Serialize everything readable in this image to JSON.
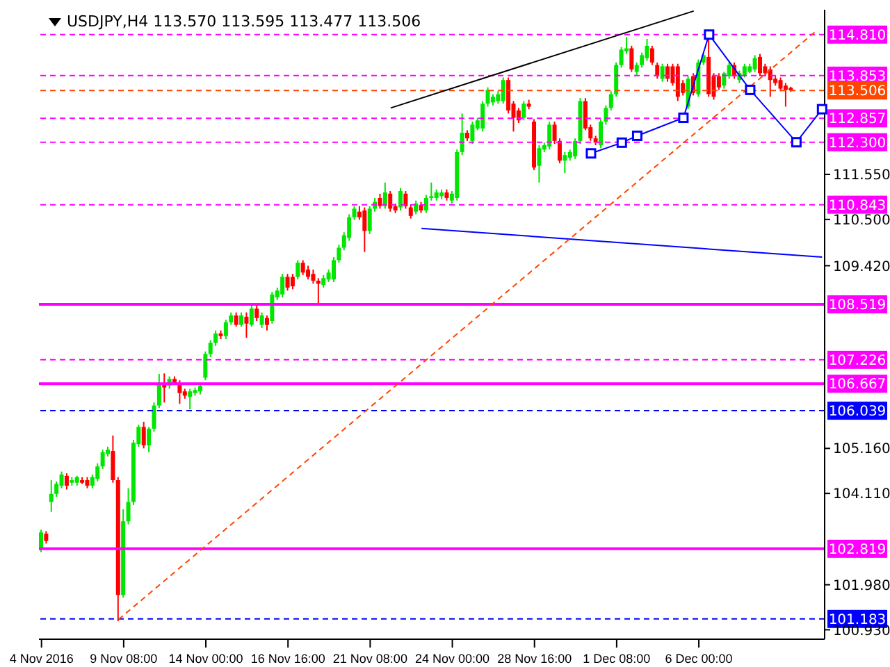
{
  "chart_data": {
    "type": "candlestick",
    "title": "USDJPY,H4 113.570 113.595 113.477 113.506",
    "categories": [
      "4 Nov 2016",
      null,
      null,
      null,
      null,
      null,
      null,
      null,
      null,
      null,
      null,
      null,
      null,
      null,
      null,
      null,
      "9 Nov 08:00",
      null,
      null,
      null,
      null,
      null,
      null,
      null,
      null,
      null,
      null,
      null,
      null,
      null,
      null,
      null,
      "14 Nov 00:00",
      null,
      null,
      null,
      null,
      null,
      null,
      null,
      null,
      null,
      null,
      null,
      null,
      null,
      null,
      null,
      "16 Nov 16:00",
      null,
      null,
      null,
      null,
      null,
      null,
      null,
      null,
      null,
      null,
      null,
      null,
      null,
      null,
      null,
      "21 Nov 08:00",
      null,
      null,
      null,
      null,
      null,
      null,
      null,
      null,
      null,
      null,
      null,
      null,
      null,
      null,
      null,
      "24 Nov 00:00",
      null,
      null,
      null,
      null,
      null,
      null,
      null,
      null,
      null,
      null,
      null,
      null,
      null,
      null,
      null,
      "28 Nov 16:00",
      null,
      null,
      null,
      null,
      null,
      null,
      null,
      null,
      null,
      null,
      null,
      null,
      null,
      null,
      null,
      "1 Dec 08:00",
      null,
      null,
      null,
      null,
      null,
      null,
      null,
      null,
      null,
      null,
      null,
      null,
      null,
      null,
      null,
      "6 Dec 00:00",
      null,
      null,
      null,
      null,
      null,
      null,
      null,
      null,
      null,
      null,
      null,
      null,
      null,
      null,
      null,
      null,
      null,
      null,
      null,
      null,
      null,
      null,
      null,
      null
    ],
    "ohlc": [
      [
        102.81,
        103.26,
        102.74,
        103.2
      ],
      [
        103.17,
        103.23,
        102.94,
        103.0
      ],
      [
        103.91,
        104.42,
        103.68,
        104.1
      ],
      [
        104.1,
        104.39,
        104.03,
        104.33
      ],
      [
        104.29,
        104.62,
        104.23,
        104.55
      ],
      [
        104.52,
        104.58,
        104.2,
        104.29
      ],
      [
        104.36,
        104.49,
        104.29,
        104.42
      ],
      [
        104.36,
        104.52,
        104.29,
        104.49
      ],
      [
        104.42,
        104.49,
        104.33,
        104.36
      ],
      [
        104.42,
        104.49,
        104.23,
        104.29
      ],
      [
        104.29,
        104.55,
        104.23,
        104.49
      ],
      [
        104.45,
        104.81,
        104.39,
        104.74
      ],
      [
        104.74,
        105.13,
        104.68,
        105.07
      ],
      [
        105.03,
        105.2,
        104.97,
        105.13
      ],
      [
        105.1,
        105.46,
        104.36,
        104.42
      ],
      [
        104.42,
        104.49,
        101.13,
        101.74
      ],
      [
        101.74,
        103.74,
        101.68,
        103.46
      ],
      [
        103.46,
        104.23,
        103.39,
        103.91
      ],
      [
        103.91,
        105.36,
        103.84,
        105.29
      ],
      [
        105.26,
        105.71,
        105.2,
        105.66
      ],
      [
        105.66,
        105.78,
        105.16,
        105.23
      ],
      [
        105.23,
        105.66,
        105.07,
        105.62
      ],
      [
        105.62,
        106.23,
        105.55,
        106.16
      ],
      [
        106.16,
        106.9,
        106.1,
        106.65
      ],
      [
        106.65,
        106.91,
        106.23,
        106.58
      ],
      [
        106.62,
        106.84,
        106.55,
        106.78
      ],
      [
        106.78,
        106.84,
        106.65,
        106.68
      ],
      [
        106.68,
        106.75,
        106.2,
        106.45
      ],
      [
        106.49,
        106.55,
        106.32,
        106.39
      ],
      [
        106.36,
        106.55,
        106.07,
        106.49
      ],
      [
        106.45,
        106.58,
        106.39,
        106.52
      ],
      [
        106.49,
        106.68,
        106.42,
        106.62
      ],
      [
        106.81,
        107.42,
        106.75,
        107.36
      ],
      [
        107.36,
        107.68,
        107.29,
        107.62
      ],
      [
        107.62,
        107.91,
        107.55,
        107.84
      ],
      [
        107.84,
        107.91,
        107.71,
        107.78
      ],
      [
        107.78,
        108.16,
        107.71,
        108.1
      ],
      [
        108.1,
        108.33,
        108.04,
        108.26
      ],
      [
        108.26,
        108.33,
        108.0,
        108.04
      ],
      [
        108.04,
        108.33,
        108.0,
        108.26
      ],
      [
        108.23,
        108.33,
        107.74,
        108.07
      ],
      [
        108.04,
        108.49,
        108.0,
        108.42
      ],
      [
        108.42,
        108.49,
        108.13,
        108.2
      ],
      [
        108.04,
        108.33,
        107.97,
        108.26
      ],
      [
        108.2,
        108.26,
        107.91,
        108.04
      ],
      [
        108.13,
        108.81,
        108.07,
        108.75
      ],
      [
        108.68,
        108.91,
        108.62,
        108.84
      ],
      [
        108.75,
        109.23,
        108.68,
        109.16
      ],
      [
        109.16,
        109.23,
        108.84,
        108.91
      ],
      [
        109.16,
        109.23,
        108.87,
        108.94
      ],
      [
        109.16,
        109.55,
        109.1,
        109.49
      ],
      [
        109.49,
        109.55,
        109.2,
        109.26
      ],
      [
        109.33,
        109.42,
        109.1,
        109.16
      ],
      [
        109.23,
        109.33,
        109.0,
        109.07
      ],
      [
        109.07,
        109.13,
        108.55,
        109.0
      ],
      [
        108.97,
        109.2,
        108.91,
        109.13
      ],
      [
        109.1,
        109.33,
        109.04,
        109.26
      ],
      [
        109.1,
        109.62,
        109.04,
        109.55
      ],
      [
        109.55,
        109.91,
        109.49,
        109.84
      ],
      [
        109.84,
        110.2,
        109.78,
        110.13
      ],
      [
        110.07,
        110.62,
        110.0,
        110.55
      ],
      [
        110.55,
        110.81,
        110.49,
        110.75
      ],
      [
        110.68,
        110.81,
        110.49,
        110.55
      ],
      [
        110.71,
        110.78,
        109.74,
        110.23
      ],
      [
        110.23,
        110.81,
        110.16,
        110.75
      ],
      [
        110.75,
        111.0,
        110.68,
        110.91
      ],
      [
        111.0,
        111.1,
        110.75,
        110.81
      ],
      [
        110.81,
        111.36,
        110.75,
        111.13
      ],
      [
        111.1,
        111.16,
        110.68,
        110.75
      ],
      [
        110.81,
        110.87,
        110.65,
        110.71
      ],
      [
        110.78,
        111.23,
        110.71,
        111.16
      ],
      [
        111.1,
        111.16,
        110.75,
        110.81
      ],
      [
        110.78,
        110.84,
        110.52,
        110.58
      ],
      [
        110.68,
        110.94,
        110.62,
        110.87
      ],
      [
        110.84,
        110.91,
        110.65,
        110.71
      ],
      [
        110.71,
        111.07,
        110.65,
        111.0
      ],
      [
        111.0,
        111.36,
        110.94,
        111.04
      ],
      [
        111.0,
        111.2,
        110.94,
        111.13
      ],
      [
        111.04,
        111.2,
        110.97,
        111.13
      ],
      [
        111.13,
        111.2,
        110.94,
        111.0
      ],
      [
        110.94,
        111.16,
        110.87,
        111.1
      ],
      [
        111.0,
        112.13,
        110.94,
        112.07
      ],
      [
        112.07,
        112.97,
        112.0,
        112.52
      ],
      [
        112.52,
        112.58,
        112.33,
        112.39
      ],
      [
        112.33,
        112.78,
        112.26,
        112.71
      ],
      [
        112.62,
        112.87,
        112.58,
        112.81
      ],
      [
        112.62,
        113.26,
        112.55,
        113.2
      ],
      [
        113.2,
        113.58,
        113.13,
        113.52
      ],
      [
        113.23,
        113.42,
        113.16,
        113.36
      ],
      [
        113.26,
        113.49,
        113.2,
        113.42
      ],
      [
        113.26,
        113.81,
        113.2,
        113.75
      ],
      [
        113.75,
        113.81,
        112.97,
        113.04
      ],
      [
        113.2,
        113.26,
        112.55,
        112.87
      ],
      [
        113.04,
        113.1,
        112.75,
        112.81
      ],
      [
        112.87,
        113.26,
        112.81,
        113.2
      ],
      [
        113.2,
        113.29,
        113.07,
        113.13
      ],
      [
        112.78,
        112.84,
        111.65,
        111.71
      ],
      [
        111.75,
        112.23,
        111.36,
        112.16
      ],
      [
        112.13,
        112.29,
        112.07,
        112.23
      ],
      [
        112.2,
        112.78,
        112.13,
        112.71
      ],
      [
        112.71,
        112.78,
        112.26,
        112.33
      ],
      [
        112.33,
        112.39,
        111.81,
        111.87
      ],
      [
        111.87,
        112.07,
        111.58,
        112.0
      ],
      [
        111.94,
        112.13,
        111.87,
        112.07
      ],
      [
        111.97,
        112.39,
        111.91,
        112.33
      ],
      [
        112.33,
        113.33,
        112.26,
        113.26
      ],
      [
        113.26,
        113.33,
        112.58,
        112.62
      ],
      [
        112.65,
        112.71,
        112.33,
        112.39
      ],
      [
        112.39,
        112.45,
        112.23,
        112.29
      ],
      [
        112.23,
        112.84,
        112.16,
        112.78
      ],
      [
        112.78,
        113.16,
        112.71,
        113.1
      ],
      [
        113.1,
        113.49,
        113.04,
        113.42
      ],
      [
        113.42,
        114.16,
        113.36,
        114.1
      ],
      [
        114.1,
        114.52,
        114.04,
        114.46
      ],
      [
        114.42,
        114.75,
        114.36,
        114.49
      ],
      [
        114.49,
        114.55,
        113.94,
        114.0
      ],
      [
        113.94,
        114.16,
        113.87,
        114.1
      ],
      [
        114.1,
        114.39,
        114.04,
        114.33
      ],
      [
        114.26,
        114.71,
        114.2,
        114.55
      ],
      [
        114.49,
        114.55,
        114.1,
        114.16
      ],
      [
        114.1,
        114.16,
        113.78,
        113.84
      ],
      [
        113.78,
        114.13,
        113.71,
        114.07
      ],
      [
        114.07,
        114.13,
        113.71,
        113.78
      ],
      [
        114.07,
        114.13,
        113.62,
        113.68
      ],
      [
        114.07,
        114.13,
        113.26,
        113.36
      ],
      [
        113.68,
        113.75,
        113.39,
        113.45
      ],
      [
        113.13,
        113.84,
        113.07,
        113.78
      ],
      [
        113.84,
        113.91,
        113.39,
        113.45
      ],
      [
        113.42,
        114.23,
        113.36,
        114.16
      ],
      [
        114.16,
        114.39,
        114.1,
        114.33
      ],
      [
        114.29,
        114.75,
        113.36,
        113.42
      ],
      [
        113.84,
        113.91,
        113.29,
        113.36
      ],
      [
        113.84,
        113.91,
        113.52,
        113.58
      ],
      [
        113.62,
        113.94,
        113.55,
        113.91
      ],
      [
        113.84,
        114.16,
        113.78,
        114.1
      ],
      [
        114.1,
        114.16,
        113.78,
        113.84
      ],
      [
        113.75,
        113.97,
        113.68,
        113.91
      ],
      [
        113.87,
        114.13,
        113.81,
        114.07
      ],
      [
        113.94,
        114.13,
        113.91,
        114.07
      ],
      [
        114.0,
        114.33,
        113.94,
        114.26
      ],
      [
        114.29,
        114.36,
        113.84,
        113.91
      ],
      [
        114.07,
        114.13,
        113.84,
        113.91
      ],
      [
        114.0,
        114.07,
        113.36,
        113.75
      ],
      [
        113.78,
        113.84,
        113.62,
        113.68
      ],
      [
        113.75,
        113.81,
        113.49,
        113.55
      ],
      [
        113.62,
        113.68,
        113.13,
        113.52
      ],
      [
        113.57,
        113.595,
        113.477,
        113.506
      ],
      null,
      null,
      null,
      null,
      null,
      null
    ],
    "colors": [
      "#00e600",
      "#ff0000",
      "#00e600",
      "#00e600",
      "#00e600",
      "#ff0000",
      "#00e600",
      "#00e600",
      "#ff0000",
      "#ff0000",
      "#00e600",
      "#00e600",
      "#00e600",
      "#00e600",
      "#ff0000",
      "#ff0000",
      "#00e600",
      "#00e600",
      "#00e600",
      "#00e600",
      "#ff0000",
      "#00e600",
      "#00e600",
      "#00e600",
      "#ff0000",
      "#00e600",
      "#ff0000",
      "#ff0000",
      "#ff0000",
      "#00e600",
      "#00e600",
      "#00e600",
      "#00e600",
      "#00e600",
      "#00e600",
      "#ff0000",
      "#00e600",
      "#00e600",
      "#ff0000",
      "#00e600",
      "#ff0000",
      "#00e600",
      "#ff0000",
      "#00e600",
      "#ff0000",
      "#00e600",
      "#00e600",
      "#00e600",
      "#ff0000",
      "#ff0000",
      "#00e600",
      "#ff0000",
      "#ff0000",
      "#ff0000",
      "#ff0000",
      "#00e600",
      "#00e600",
      "#00e600",
      "#00e600",
      "#00e600",
      "#00e600",
      "#00e600",
      "#ff0000",
      "#ff0000",
      "#00e600",
      "#00e600",
      "#ff0000",
      "#00e600",
      "#ff0000",
      "#ff0000",
      "#00e600",
      "#ff0000",
      "#ff0000",
      "#00e600",
      "#ff0000",
      "#00e600",
      "#00e600",
      "#00e600",
      "#00e600",
      "#ff0000",
      "#00e600",
      "#00e600",
      "#00e600",
      "#ff0000",
      "#00e600",
      "#00e600",
      "#00e600",
      "#00e600",
      "#00e600",
      "#00e600",
      "#00e600",
      "#ff0000",
      "#ff0000",
      "#ff0000",
      "#00e600",
      "#ff0000",
      "#ff0000",
      "#00e600",
      "#00e600",
      "#00e600",
      "#ff0000",
      "#ff0000",
      "#00e600",
      "#00e600",
      "#00e600",
      "#00e600",
      "#ff0000",
      "#ff0000",
      "#ff0000",
      "#00e600",
      "#00e600",
      "#00e600",
      "#00e600",
      "#00e600",
      "#00e600",
      "#ff0000",
      "#00e600",
      "#00e600",
      "#00e600",
      "#ff0000",
      "#ff0000",
      "#00e600",
      "#ff0000",
      "#ff0000",
      "#ff0000",
      "#ff0000",
      "#00e600",
      "#ff0000",
      "#00e600",
      "#00e600",
      "#ff0000",
      "#ff0000",
      "#ff0000",
      "#00e600",
      "#00e600",
      "#ff0000",
      "#00e600",
      "#00e600",
      "#00e600",
      "#00e600",
      "#ff0000",
      "#ff0000",
      "#ff0000",
      "#ff0000",
      "#ff0000",
      "#ff0000",
      "#ff0000",
      null,
      null,
      null,
      null,
      null,
      null
    ],
    "series": [
      {
        "type": "line",
        "color": "#000000",
        "values": [
          null,
          null,
          null,
          null,
          null,
          null,
          null,
          null,
          null,
          null,
          null,
          null,
          null,
          null,
          null,
          null,
          null,
          null,
          null,
          null,
          null,
          null,
          null,
          null,
          null,
          null,
          null,
          null,
          null,
          null,
          null,
          null,
          null,
          null,
          null,
          null,
          null,
          null,
          null,
          null,
          null,
          null,
          null,
          null,
          null,
          null,
          null,
          null,
          null,
          null,
          null,
          null,
          null,
          null,
          null,
          null,
          null,
          null,
          null,
          null,
          null,
          null,
          null,
          null,
          null,
          null,
          null,
          null,
          113.1,
          null,
          null,
          null,
          null,
          null,
          null,
          null,
          null,
          null,
          null,
          null,
          null,
          null,
          null,
          null,
          null,
          null,
          null,
          null,
          null,
          null,
          null,
          null,
          null,
          null,
          null,
          null,
          null,
          null,
          null,
          null,
          null,
          null,
          null,
          null,
          null,
          null,
          null,
          null,
          null,
          null,
          null,
          null,
          null,
          null,
          null,
          null,
          null,
          null,
          null,
          null,
          null,
          null,
          null,
          null,
          null,
          null,
          null,
          115.36,
          null,
          null,
          null,
          null,
          null,
          null,
          null,
          null,
          null,
          null,
          null,
          null,
          null,
          null,
          null,
          null,
          null,
          null,
          null,
          null,
          null,
          null,
          null,
          null,
          null
        ]
      },
      {
        "type": "line",
        "color": "#0000ff",
        "marker": "square",
        "values": [
          null,
          null,
          null,
          null,
          null,
          null,
          null,
          null,
          null,
          null,
          null,
          null,
          null,
          null,
          null,
          null,
          null,
          null,
          null,
          null,
          null,
          null,
          null,
          null,
          null,
          null,
          null,
          null,
          null,
          null,
          null,
          null,
          null,
          null,
          null,
          null,
          null,
          null,
          null,
          null,
          null,
          null,
          null,
          null,
          null,
          null,
          null,
          null,
          null,
          null,
          null,
          null,
          null,
          null,
          null,
          null,
          null,
          null,
          null,
          null,
          null,
          null,
          null,
          null,
          null,
          null,
          null,
          null,
          null,
          null,
          null,
          null,
          null,
          null,
          null,
          null,
          null,
          null,
          null,
          null,
          null,
          null,
          null,
          null,
          null,
          null,
          null,
          null,
          null,
          null,
          null,
          null,
          null,
          null,
          null,
          null,
          null,
          null,
          null,
          null,
          null,
          null,
          null,
          null,
          null,
          null,
          null,
          112.04,
          null,
          null,
          null,
          null,
          null,
          112.29,
          null,
          null,
          112.45,
          null,
          null,
          null,
          null,
          null,
          null,
          null,
          null,
          112.87,
          null,
          null,
          null,
          null,
          114.81,
          null,
          null,
          null,
          null,
          null,
          null,
          null,
          113.52,
          null,
          null,
          null,
          null,
          null,
          null,
          null,
          null,
          112.3,
          null,
          null,
          null,
          null,
          113.07
        ]
      },
      {
        "type": "line",
        "color": "#0000ff",
        "values": [
          null,
          null,
          null,
          null,
          null,
          null,
          null,
          null,
          null,
          null,
          null,
          null,
          null,
          null,
          null,
          null,
          null,
          null,
          null,
          null,
          null,
          null,
          null,
          null,
          null,
          null,
          null,
          null,
          null,
          null,
          null,
          null,
          null,
          null,
          null,
          null,
          null,
          null,
          null,
          null,
          null,
          null,
          null,
          null,
          null,
          null,
          null,
          null,
          null,
          null,
          null,
          null,
          null,
          null,
          null,
          null,
          null,
          null,
          null,
          null,
          null,
          null,
          null,
          null,
          null,
          null,
          null,
          null,
          null,
          null,
          null,
          null,
          null,
          null,
          110.29,
          null,
          null,
          null,
          null,
          null,
          null,
          null,
          null,
          null,
          null,
          null,
          null,
          null,
          null,
          null,
          null,
          null,
          null,
          null,
          null,
          null,
          null,
          null,
          null,
          null,
          null,
          null,
          null,
          null,
          null,
          null,
          null,
          null,
          null,
          null,
          null,
          null,
          null,
          null,
          null,
          null,
          null,
          null,
          null,
          null,
          null,
          null,
          null,
          null,
          null,
          null,
          null,
          null,
          null,
          null,
          null,
          null,
          null,
          null,
          null,
          null,
          null,
          null,
          null,
          null,
          null,
          null,
          null,
          null,
          null,
          null,
          null,
          null,
          null,
          null,
          null,
          null,
          109.62
        ]
      },
      {
        "type": "line",
        "color": "#ff4500",
        "line_style": "dashed",
        "values": [
          null,
          null,
          null,
          null,
          null,
          null,
          null,
          null,
          null,
          null,
          null,
          null,
          null,
          null,
          null,
          101.17,
          null,
          null,
          null,
          null,
          null,
          null,
          null,
          null,
          null,
          null,
          null,
          null,
          null,
          null,
          null,
          null,
          null,
          null,
          null,
          null,
          null,
          null,
          null,
          null,
          null,
          null,
          null,
          null,
          null,
          null,
          null,
          null,
          null,
          null,
          null,
          null,
          null,
          null,
          null,
          null,
          null,
          null,
          null,
          null,
          null,
          null,
          null,
          null,
          null,
          null,
          null,
          null,
          null,
          null,
          null,
          null,
          null,
          null,
          null,
          null,
          null,
          null,
          null,
          null,
          null,
          null,
          null,
          null,
          null,
          null,
          null,
          null,
          null,
          null,
          null,
          null,
          null,
          null,
          null,
          null,
          null,
          null,
          null,
          null,
          null,
          null,
          null,
          null,
          null,
          null,
          null,
          null,
          null,
          null,
          null,
          null,
          null,
          null,
          null,
          null,
          null,
          null,
          null,
          null,
          null,
          null,
          null,
          null,
          null,
          null,
          null,
          null,
          null,
          null,
          null,
          null,
          null,
          null,
          null,
          null,
          null,
          null,
          null,
          null,
          null,
          null,
          null,
          null,
          null,
          null,
          null,
          null,
          null,
          null,
          null,
          114.91,
          null
        ]
      }
    ],
    "ylim": [
      100.71,
      115.39
    ],
    "yticks": [
      {
        "value": 100.93,
        "label": "100.930"
      },
      {
        "value": 101.98,
        "label": "101.980"
      },
      {
        "value": 104.11,
        "label": "104.110"
      },
      {
        "value": 105.16,
        "label": "105.160"
      },
      {
        "value": 109.42,
        "label": "109.420"
      },
      {
        "value": 110.5,
        "label": "110.500"
      },
      {
        "value": 111.55,
        "label": "111.550"
      }
    ],
    "ref_lines": [
      {
        "axis": "y",
        "value": 114.81,
        "label": "114.810",
        "color": "#ff00ff",
        "line_style": "dashed"
      },
      {
        "axis": "y",
        "value": 113.853,
        "label": "113.853",
        "color": "#ff00ff",
        "line_style": "dashed"
      },
      {
        "axis": "y",
        "value": 113.506,
        "label": "113.506",
        "color": "#ff4500",
        "line_style": "dashed"
      },
      {
        "axis": "y",
        "value": 112.857,
        "label": "112.857",
        "color": "#ff00ff",
        "line_style": "dashed"
      },
      {
        "axis": "y",
        "value": 112.3,
        "label": "112.300",
        "color": "#ff00ff",
        "line_style": "dashed"
      },
      {
        "axis": "y",
        "value": 110.843,
        "label": "110.843",
        "color": "#ff00ff",
        "line_style": "dashed"
      },
      {
        "axis": "y",
        "value": 108.519,
        "label": "108.519",
        "color": "#ff00ff",
        "line_style": "solid"
      },
      {
        "axis": "y",
        "value": 107.226,
        "label": "107.226",
        "color": "#ff00ff",
        "line_style": "dashed"
      },
      {
        "axis": "y",
        "value": 106.667,
        "label": "106.667",
        "color": "#ff00ff",
        "line_style": "solid"
      },
      {
        "axis": "y",
        "value": 106.039,
        "label": "106.039",
        "color": "#0000ff",
        "line_style": "dashed"
      },
      {
        "axis": "y",
        "value": 102.819,
        "label": "102.819",
        "color": "#ff00ff",
        "line_style": "solid"
      },
      {
        "axis": "y",
        "value": 101.183,
        "label": "101.183",
        "color": "#0000ff",
        "line_style": "dashed"
      }
    ]
  }
}
